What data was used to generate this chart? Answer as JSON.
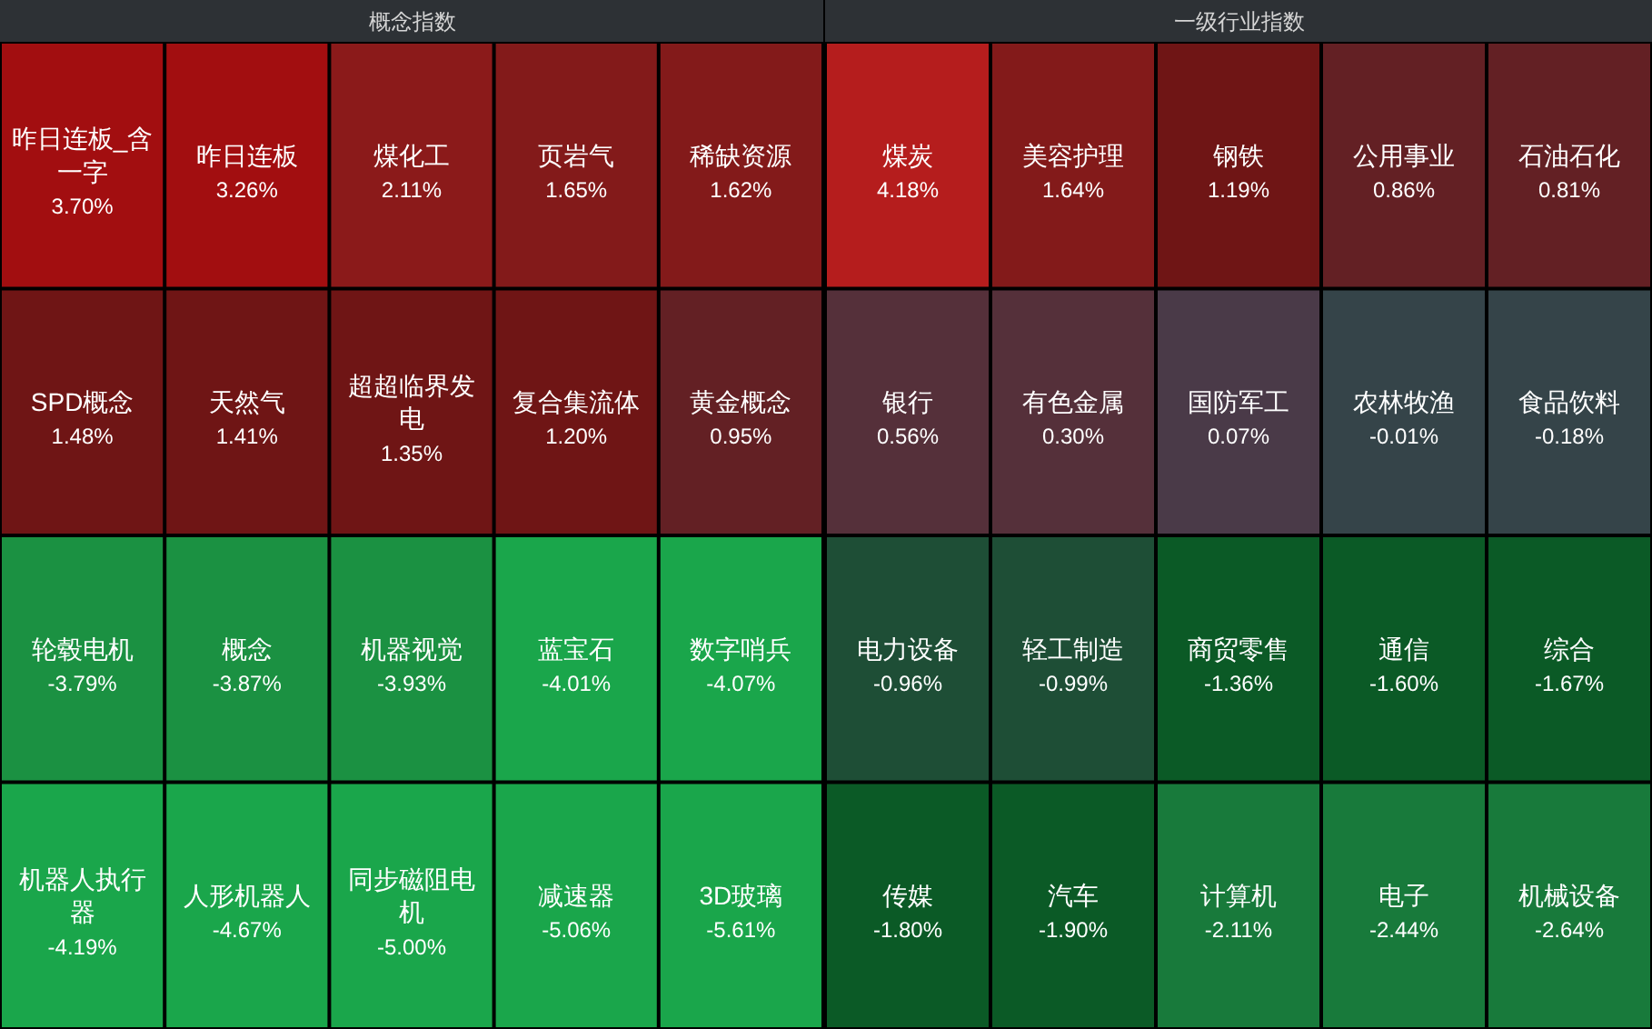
{
  "chart_data": [
    {
      "type": "other",
      "title": "概念指数",
      "categories": [
        "昨日连板_含一字",
        "昨日连板",
        "煤化工",
        "页岩气",
        "稀缺资源",
        "SPD概念",
        "天然气",
        "超超临界发电",
        "复合集流体",
        "黄金概念",
        "轮毂电机",
        "概念",
        "机器视觉",
        "蓝宝石",
        "数字哨兵",
        "机器人执行器",
        "人形机器人",
        "同步磁阻电机",
        "减速器",
        "3D玻璃"
      ],
      "values": [
        3.7,
        3.26,
        2.11,
        1.65,
        1.62,
        1.48,
        1.41,
        1.35,
        1.2,
        0.95,
        -3.79,
        -3.87,
        -3.93,
        -4.01,
        -4.07,
        -4.19,
        -4.67,
        -5.0,
        -5.06,
        -5.61
      ],
      "value_labels": [
        "3.70%",
        "3.26%",
        "2.11%",
        "1.65%",
        "1.62%",
        "1.48%",
        "1.41%",
        "1.35%",
        "1.20%",
        "0.95%",
        "-3.79%",
        "-3.87%",
        "-3.93%",
        "-4.01%",
        "-4.07%",
        "-4.19%",
        "-4.67%",
        "-5.00%",
        "-5.06%",
        "-5.61%"
      ]
    },
    {
      "type": "other",
      "title": "一级行业指数",
      "categories": [
        "煤炭",
        "美容护理",
        "钢铁",
        "公用事业",
        "石油石化",
        "银行",
        "有色金属",
        "国防军工",
        "农林牧渔",
        "食品饮料",
        "电力设备",
        "轻工制造",
        "商贸零售",
        "通信",
        "综合",
        "传媒",
        "汽车",
        "计算机",
        "电子",
        "机械设备"
      ],
      "values": [
        4.18,
        1.64,
        1.19,
        0.86,
        0.81,
        0.56,
        0.3,
        0.07,
        -0.01,
        -0.18,
        -0.96,
        -0.99,
        -1.36,
        -1.6,
        -1.67,
        -1.8,
        -1.9,
        -2.11,
        -2.44,
        -2.64
      ],
      "value_labels": [
        "4.18%",
        "1.64%",
        "1.19%",
        "0.86%",
        "0.81%",
        "0.56%",
        "0.30%",
        "0.07%",
        "-0.01%",
        "-0.18%",
        "-0.96%",
        "-0.99%",
        "-1.36%",
        "-1.60%",
        "-1.67%",
        "-1.80%",
        "-1.90%",
        "-2.11%",
        "-2.44%",
        "-2.64%"
      ]
    }
  ]
}
